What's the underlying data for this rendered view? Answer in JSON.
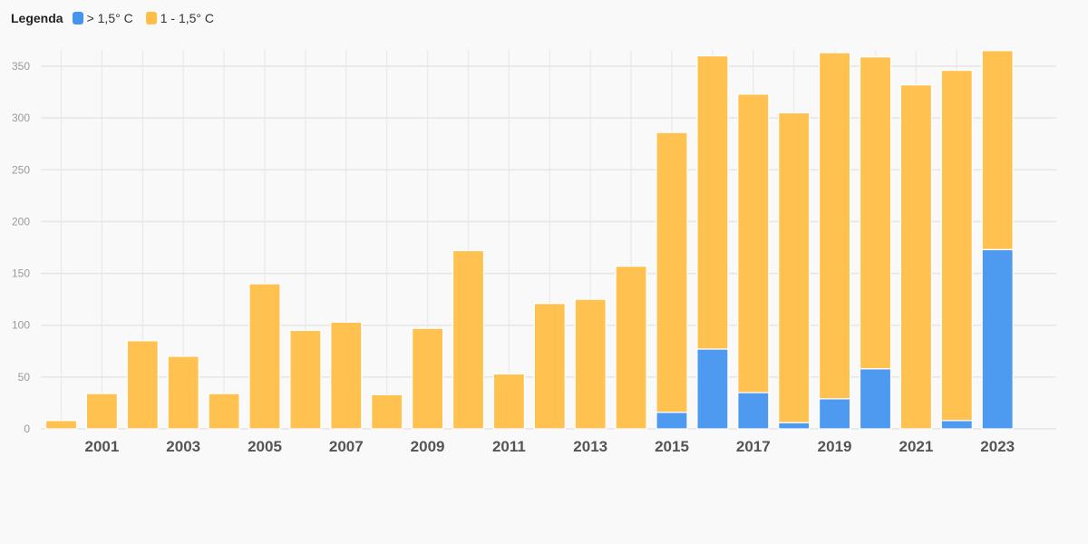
{
  "legend": {
    "title": "Legenda",
    "items": [
      {
        "label": "> 1,5° C",
        "color": "#4595f0"
      },
      {
        "label": "1 - 1,5° C",
        "color": "#ffbf47"
      }
    ]
  },
  "chart_data": {
    "type": "bar",
    "stacked": true,
    "categories": [
      "2000",
      "2001",
      "2002",
      "2003",
      "2004",
      "2005",
      "2006",
      "2007",
      "2008",
      "2009",
      "2010",
      "2011",
      "2012",
      "2013",
      "2014",
      "2015",
      "2016",
      "2017",
      "2018",
      "2019",
      "2020",
      "2021",
      "2022",
      "2023"
    ],
    "x_tick_labels": [
      "2001",
      "2003",
      "2005",
      "2007",
      "2009",
      "2011",
      "2013",
      "2015",
      "2017",
      "2019",
      "2021",
      "2023"
    ],
    "series": [
      {
        "name": "> 1,5° C",
        "color": "#4595f0",
        "values": [
          0,
          0,
          0,
          0,
          0,
          0,
          0,
          0,
          0,
          0,
          0,
          0,
          0,
          0,
          0,
          16,
          77,
          35,
          6,
          29,
          58,
          0,
          8,
          173
        ]
      },
      {
        "name": "1 - 1,5° C",
        "color": "#ffbf47",
        "values": [
          8,
          34,
          85,
          70,
          34,
          140,
          95,
          103,
          33,
          97,
          172,
          53,
          121,
          125,
          157,
          270,
          283,
          288,
          299,
          334,
          301,
          332,
          338,
          192
        ]
      }
    ],
    "ylim": [
      0,
      366
    ],
    "y_ticks": [
      0,
      50,
      100,
      150,
      200,
      250,
      300,
      350
    ],
    "grid": true
  }
}
